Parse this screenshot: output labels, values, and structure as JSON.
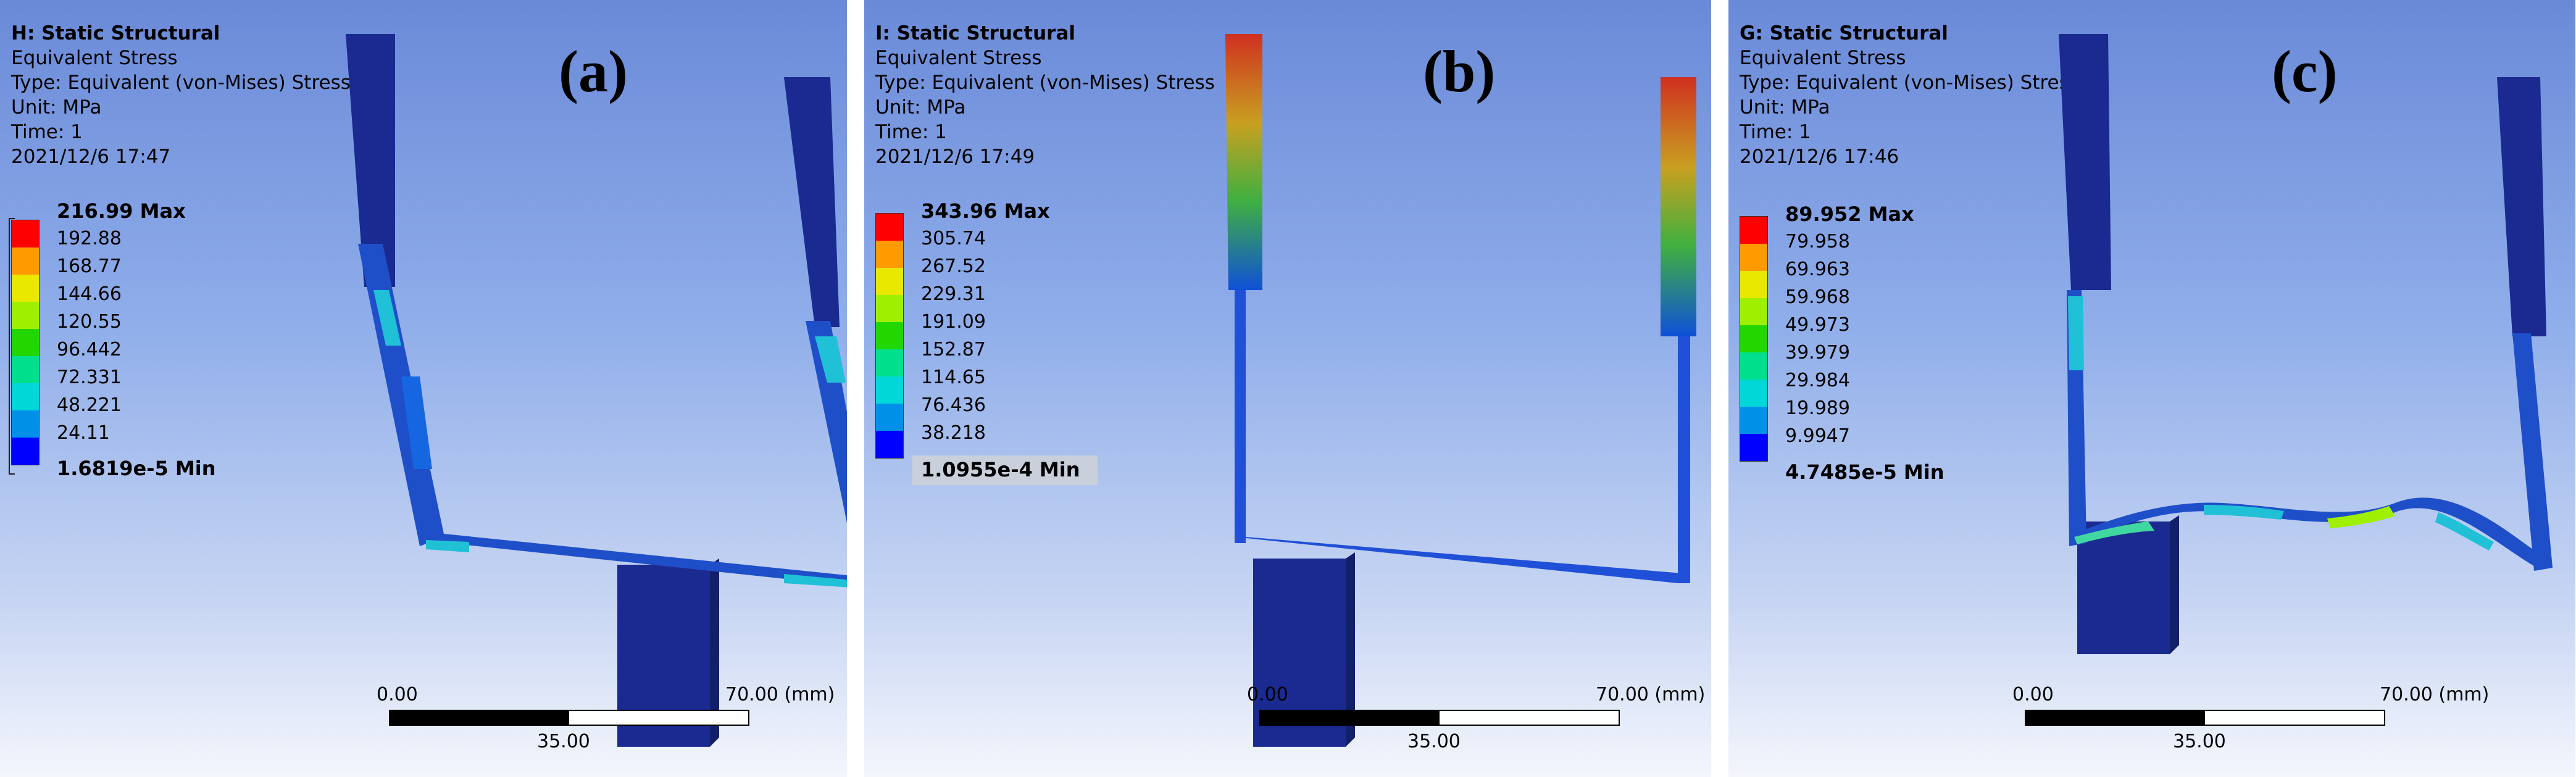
{
  "panels": [
    {
      "title": "H: Static Structural",
      "result": "Equivalent Stress",
      "type": "Type: Equivalent (von-Mises) Stress",
      "unit": "Unit: MPa",
      "time": "Time: 1",
      "date": "2021/12/6 17:47",
      "letter": "(a)",
      "legend": [
        "216.99 Max",
        "192.88",
        "168.77",
        "144.66",
        "120.55",
        "96.442",
        "72.331",
        "48.221",
        "24.11",
        "1.6819e-5 Min"
      ]
    },
    {
      "title": "I: Static Structural",
      "result": "Equivalent Stress",
      "type": "Type: Equivalent (von-Mises) Stress",
      "unit": "Unit: MPa",
      "time": "Time: 1",
      "date": "2021/12/6 17:49",
      "letter": "(b)",
      "legend": [
        "343.96 Max",
        "305.74",
        "267.52",
        "229.31",
        "191.09",
        "152.87",
        "114.65",
        "76.436",
        "38.218",
        "1.0955e-4 Min"
      ]
    },
    {
      "title": "G: Static Structural",
      "result": "Equivalent Stress",
      "type": "Type: Equivalent (von-Mises) Stress",
      "unit": "Unit: MPa",
      "time": "Time: 1",
      "date": "2021/12/6 17:46",
      "letter": "(c)",
      "legend": [
        "89.952 Max",
        "79.958",
        "69.963",
        "59.968",
        "49.973",
        "39.979",
        "29.984",
        "19.989",
        "9.9947",
        "4.7485e-5 Min"
      ]
    }
  ],
  "scale": {
    "start": "0.00",
    "mid": "35.00",
    "end": "70.00 (mm)"
  },
  "legend_colors": [
    "#ff0000",
    "#ff9a00",
    "#e8e800",
    "#9ef000",
    "#22d600",
    "#00e08c",
    "#00d8d8",
    "#0090e8",
    "#0000ff"
  ],
  "model_color": "#1a2a90"
}
